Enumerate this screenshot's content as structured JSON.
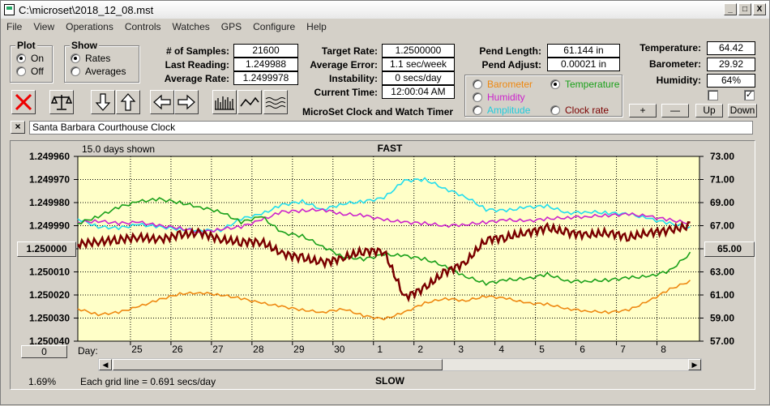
{
  "window": {
    "title": "C:\\microset\\2018_12_08.mst",
    "buttons": [
      "_",
      "□",
      "X"
    ]
  },
  "menu": [
    "File",
    "View",
    "Operations",
    "Controls",
    "Watches",
    "GPS",
    "Configure",
    "Help"
  ],
  "plot_group": {
    "label": "Plot",
    "on": "On",
    "off": "Off",
    "selected": "On"
  },
  "show_group": {
    "label": "Show",
    "rates": "Rates",
    "averages": "Averages",
    "selected": "Rates"
  },
  "stats": {
    "samples_label": "# of Samples:",
    "samples": "21600",
    "last_reading_label": "Last Reading:",
    "last_reading": "1.249988",
    "average_rate_label": "Average Rate:",
    "average_rate": "1.2499978",
    "target_rate_label": "Target Rate:",
    "target_rate": "1.2500000",
    "average_error_label": "Average Error:",
    "average_error": "1.1 sec/week",
    "instability_label": "Instability:",
    "instability": "0 secs/day",
    "current_time_label": "Current Time:",
    "current_time": "12:00:04 AM",
    "app_name": "MicroSet Clock and Watch Timer",
    "pend_length_label": "Pend Length:",
    "pend_length": "61.144 in",
    "pend_adjust_label": "Pend Adjust:",
    "pend_adjust": "0.00021 in",
    "temperature_label": "Temperature:",
    "temperature": "64.42",
    "barometer_label": "Barometer:",
    "barometer": "29.92",
    "humidity_label": "Humidity:",
    "humidity": "64%"
  },
  "series_selector": {
    "barometer": "Barometer",
    "temperature": "Temperature",
    "humidity": "Humidity",
    "amplitude": "Amplitude",
    "clock_rate": "Clock rate",
    "selected": "Temperature"
  },
  "adjust_buttons": {
    "plus": "+",
    "minus": "—",
    "up": "Up",
    "down": "Down"
  },
  "clock_name": "Santa Barbara Courthouse Clock",
  "close_x": "×",
  "plot": {
    "days_shown": "15.0 days shown",
    "fast_label": "FAST",
    "slow_label": "SLOW",
    "grid_note": "Each grid line = 0.691 secs/day",
    "percent": "1.69%",
    "zero_button": "0",
    "center_button": "1.250000",
    "right_button": "65.00",
    "day_label": "Day:"
  },
  "chart_data": {
    "type": "line",
    "left_ticks": [
      "1.249960",
      "1.249970",
      "1.249980",
      "1.249990",
      "1.250000",
      "1.250010",
      "1.250020",
      "1.250030",
      "1.250040"
    ],
    "right_ticks": [
      "73.00",
      "71.00",
      "69.00",
      "67.00",
      "65.00",
      "63.00",
      "61.00",
      "59.00",
      "57.00"
    ],
    "days": [
      "25",
      "26",
      "27",
      "28",
      "29",
      "30",
      "1",
      "2",
      "3",
      "4",
      "5",
      "6",
      "7",
      "8"
    ],
    "xlim": [
      0,
      15
    ],
    "ylim_rate": [
      1.24996,
      1.25004
    ],
    "ylim_temp": [
      57,
      73
    ],
    "colors": {
      "rate": "#7a0000",
      "temperature": "#1aa01a",
      "humidity": "#cc22cc",
      "amplitude": "#22ddee",
      "barometer": "#ee8811",
      "background": "#ffffc8"
    },
    "series": [
      {
        "key": "rate",
        "x": [
          0,
          0.5,
          1,
          1.5,
          2,
          2.5,
          3,
          3.5,
          4,
          4.5,
          5,
          5.5,
          6,
          6.5,
          7,
          7.5,
          8,
          8.5,
          9,
          9.5,
          10,
          10.5,
          11,
          11.5,
          12,
          12.5,
          13,
          13.5,
          14,
          14.5,
          15
        ],
        "values": [
          1.249998,
          1.249997,
          1.249996,
          1.249995,
          1.249996,
          1.249994,
          1.249993,
          1.249996,
          1.249997,
          1.249997,
          1.250002,
          1.250004,
          1.250006,
          1.250004,
          1.250001,
          1.250001,
          1.250021,
          1.250017,
          1.25001,
          1.250006,
          1.249996,
          1.249995,
          1.249993,
          1.249991,
          1.249993,
          1.249994,
          1.249993,
          1.249995,
          1.249993,
          1.249992,
          1.24999
        ]
      },
      {
        "key": "temperature",
        "x": [
          0,
          0.5,
          1,
          1.5,
          2,
          2.5,
          3,
          3.5,
          4,
          4.5,
          5,
          5.5,
          6,
          6.5,
          7,
          7.5,
          8,
          8.5,
          9,
          9.5,
          10,
          10.5,
          11,
          11.5,
          12,
          12.5,
          13,
          13.5,
          14,
          14.5,
          15
        ],
        "values": [
          67.2,
          67.8,
          68.6,
          69.1,
          69.3,
          69.0,
          68.6,
          68.2,
          67.3,
          67.8,
          66.4,
          66.1,
          65.2,
          64.3,
          64.1,
          64.5,
          64.4,
          64.1,
          63.5,
          62.6,
          62.0,
          62.3,
          62.4,
          62.8,
          62.2,
          62.2,
          62.3,
          62.5,
          62.6,
          63.1,
          64.6
        ]
      },
      {
        "key": "humidity",
        "x": [
          0,
          0.5,
          1,
          1.5,
          2,
          2.5,
          3,
          3.5,
          4,
          4.5,
          5,
          5.5,
          6,
          6.5,
          7,
          7.5,
          8,
          8.5,
          9,
          9.5,
          10,
          10.5,
          11,
          11.5,
          12,
          12.5,
          13,
          13.5,
          14,
          14.5,
          15
        ],
        "values": [
          67.3,
          67.4,
          67.2,
          67.3,
          67.0,
          66.8,
          66.4,
          66.7,
          66.9,
          67.5,
          68.2,
          68.3,
          68.4,
          68.0,
          67.9,
          67.5,
          67.3,
          67.2,
          67.0,
          67.1,
          67.3,
          67.5,
          67.4,
          67.6,
          67.7,
          67.8,
          67.9,
          68.0,
          67.8,
          67.5,
          67.2
        ]
      },
      {
        "key": "amplitude",
        "x": [
          0,
          0.5,
          1,
          1.5,
          2,
          2.5,
          3,
          3.5,
          4,
          4.5,
          5,
          5.5,
          6,
          6.5,
          7,
          7.5,
          8,
          8.5,
          9,
          9.5,
          10,
          10.5,
          11,
          11.5,
          12,
          12.5,
          13,
          13.5,
          14,
          14.5,
          15
        ],
        "values": [
          67.6,
          66.9,
          66.8,
          67.1,
          66.9,
          66.7,
          66.6,
          66.6,
          67.6,
          68.0,
          68.8,
          69.1,
          68.4,
          68.9,
          69.1,
          69.4,
          70.9,
          71.0,
          70.2,
          69.5,
          68.4,
          68.3,
          68.6,
          68.7,
          68.1,
          68.2,
          68.1,
          68.0,
          67.6,
          67.2,
          66.8
        ]
      },
      {
        "key": "barometer",
        "x": [
          0,
          0.5,
          1,
          1.5,
          2,
          2.5,
          3,
          3.5,
          4,
          4.5,
          5,
          5.5,
          6,
          6.5,
          7,
          7.5,
          8,
          8.5,
          9,
          9.5,
          10,
          10.5,
          11,
          11.5,
          12,
          12.5,
          13,
          13.5,
          14,
          14.5,
          15
        ],
        "values": [
          59.8,
          59.3,
          59.5,
          60.0,
          60.6,
          61.1,
          61.2,
          61.0,
          60.7,
          60.3,
          60.0,
          59.7,
          59.5,
          59.8,
          59.2,
          58.9,
          59.5,
          60.3,
          60.7,
          60.5,
          60.9,
          60.7,
          60.3,
          60.2,
          59.8,
          59.6,
          59.5,
          59.7,
          60.5,
          61.5,
          62.2
        ]
      }
    ]
  }
}
